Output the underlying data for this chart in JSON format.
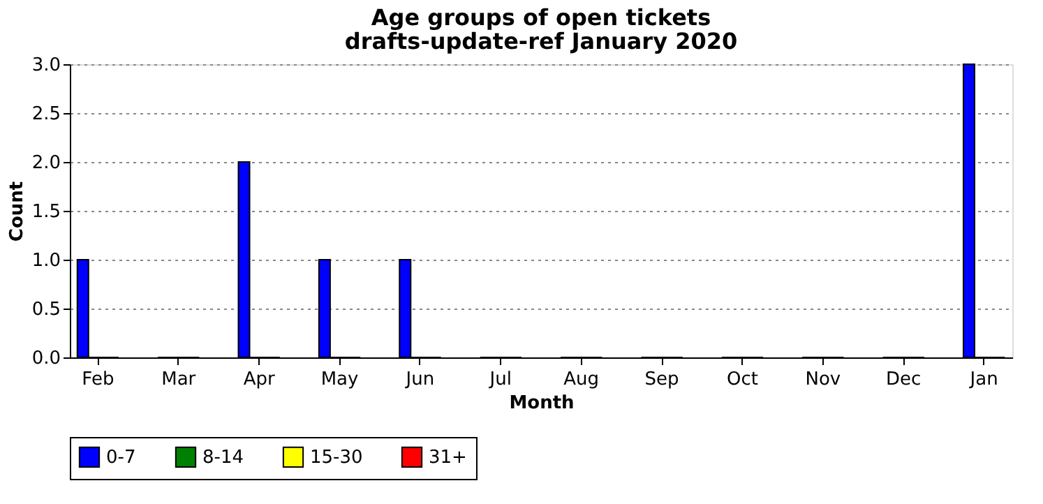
{
  "chart_data": {
    "type": "bar",
    "title": "Age groups of open tickets",
    "subtitle": "drafts-update-ref January 2020",
    "xlabel": "Month",
    "ylabel": "Count",
    "categories": [
      "Feb",
      "Mar",
      "Apr",
      "May",
      "Jun",
      "Jul",
      "Aug",
      "Sep",
      "Oct",
      "Nov",
      "Dec",
      "Jan"
    ],
    "series": [
      {
        "name": "0-7",
        "color": "#0000ff",
        "values": [
          1,
          0,
          2,
          1,
          1,
          0,
          0,
          0,
          0,
          0,
          0,
          3
        ]
      },
      {
        "name": "8-14",
        "color": "#008000",
        "values": [
          0,
          0,
          0,
          0,
          0,
          0,
          0,
          0,
          0,
          0,
          0,
          0
        ]
      },
      {
        "name": "15-30",
        "color": "#ffff00",
        "values": [
          0,
          0,
          0,
          0,
          0,
          0,
          0,
          0,
          0,
          0,
          0,
          0
        ]
      },
      {
        "name": "31+",
        "color": "#ff0000",
        "values": [
          0,
          0,
          0,
          0,
          0,
          0,
          0,
          0,
          0,
          0,
          0,
          0
        ]
      }
    ],
    "ylim": [
      0,
      3
    ],
    "yticks": [
      {
        "value": 0,
        "label": "0.0"
      },
      0.5,
      {
        "value": 1,
        "label": "1.0"
      },
      1.5,
      {
        "value": 2,
        "label": "2.0"
      },
      2.5,
      {
        "value": 3,
        "label": "3.0"
      }
    ],
    "grid": "y",
    "legend": "bottom"
  }
}
